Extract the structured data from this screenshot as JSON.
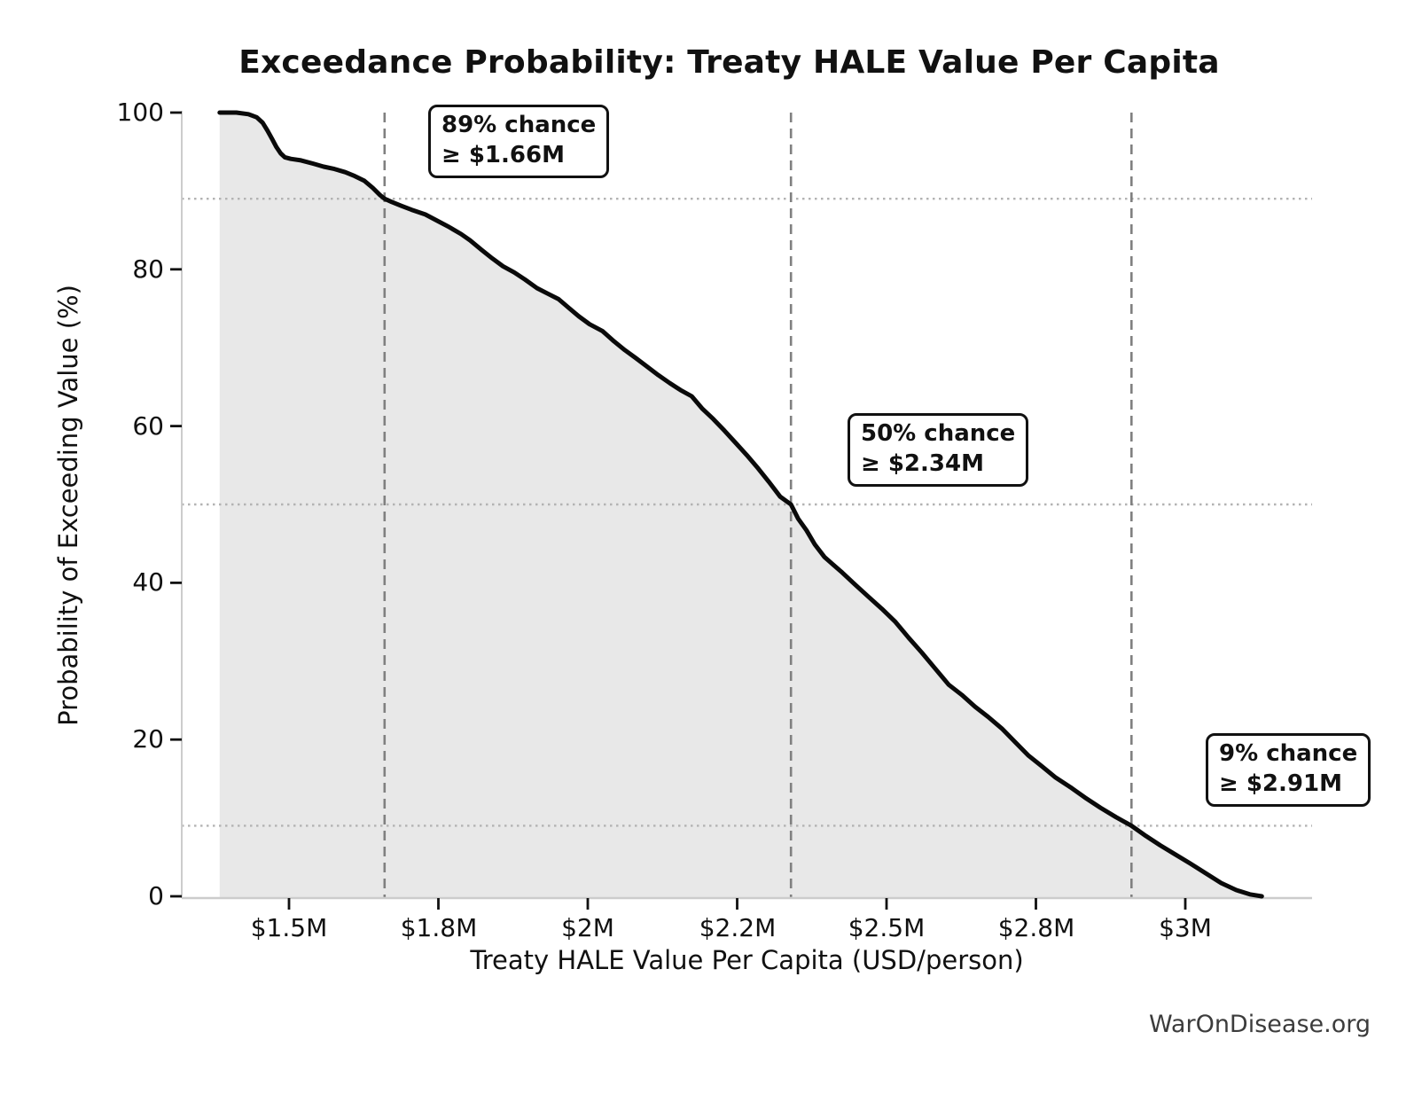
{
  "page": {
    "watermark": "WarOnDisease.org"
  },
  "chart_data": {
    "type": "area",
    "title": "Exceedance Probability: Treaty HALE Value Per Capita",
    "xlabel": "Treaty HALE Value Per Capita (USD/person)",
    "ylabel": "Probability of Exceeding Value (%)",
    "x_unit": "million USD per person",
    "xlim": [
      1.32,
      3.21
    ],
    "ylim": [
      0,
      100
    ],
    "legend": "none",
    "x_ticks": {
      "values": [
        1.5,
        1.75,
        2.0,
        2.25,
        2.5,
        2.75,
        3.0
      ],
      "labels": [
        "$1.5M",
        "$1.8M",
        "$2M",
        "$2.2M",
        "$2.5M",
        "$2.8M",
        "$3M"
      ]
    },
    "y_ticks": {
      "values": [
        0,
        20,
        40,
        60,
        80,
        100
      ],
      "labels": [
        "0",
        "20",
        "40",
        "60",
        "80",
        "100"
      ]
    },
    "grid": {
      "h_dotted_at_probs": [
        89,
        50,
        9
      ],
      "v_dashed_at_values": [
        1.66,
        2.34,
        2.91
      ]
    },
    "annotations": [
      {
        "lines": [
          "89% chance",
          "≥ $1.66M"
        ],
        "threshold_value_musd": 1.66,
        "exceed_prob_pct": 89
      },
      {
        "lines": [
          "50% chance",
          "≥ $2.34M"
        ],
        "threshold_value_musd": 2.34,
        "exceed_prob_pct": 50
      },
      {
        "lines": [
          "9% chance",
          "≥ $2.91M"
        ],
        "threshold_value_musd": 2.91,
        "exceed_prob_pct": 9
      }
    ],
    "series": [
      {
        "name": "exceedance_curve",
        "points": [
          [
            1.384,
            100.0
          ],
          [
            1.412,
            100.0
          ],
          [
            1.432,
            99.8
          ],
          [
            1.446,
            99.4
          ],
          [
            1.456,
            98.7
          ],
          [
            1.464,
            97.7
          ],
          [
            1.472,
            96.6
          ],
          [
            1.479,
            95.6
          ],
          [
            1.486,
            94.8
          ],
          [
            1.493,
            94.3
          ],
          [
            1.503,
            94.1
          ],
          [
            1.52,
            93.9
          ],
          [
            1.54,
            93.5
          ],
          [
            1.558,
            93.1
          ],
          [
            1.576,
            92.8
          ],
          [
            1.594,
            92.4
          ],
          [
            1.61,
            91.9
          ],
          [
            1.626,
            91.3
          ],
          [
            1.64,
            90.4
          ],
          [
            1.652,
            89.5
          ],
          [
            1.66,
            89.0
          ],
          [
            1.672,
            88.6
          ],
          [
            1.688,
            88.1
          ],
          [
            1.705,
            87.6
          ],
          [
            1.728,
            87.0
          ],
          [
            1.748,
            86.2
          ],
          [
            1.768,
            85.4
          ],
          [
            1.788,
            84.5
          ],
          [
            1.803,
            83.7
          ],
          [
            1.822,
            82.5
          ],
          [
            1.84,
            81.4
          ],
          [
            1.858,
            80.4
          ],
          [
            1.877,
            79.6
          ],
          [
            1.895,
            78.7
          ],
          [
            1.915,
            77.6
          ],
          [
            1.933,
            76.9
          ],
          [
            1.951,
            76.2
          ],
          [
            1.968,
            75.1
          ],
          [
            1.985,
            74.0
          ],
          [
            2.003,
            73.0
          ],
          [
            2.025,
            72.1
          ],
          [
            2.044,
            70.8
          ],
          [
            2.062,
            69.7
          ],
          [
            2.08,
            68.7
          ],
          [
            2.099,
            67.6
          ],
          [
            2.118,
            66.5
          ],
          [
            2.137,
            65.5
          ],
          [
            2.155,
            64.6
          ],
          [
            2.174,
            63.8
          ],
          [
            2.192,
            62.2
          ],
          [
            2.21,
            60.9
          ],
          [
            2.229,
            59.4
          ],
          [
            2.248,
            57.8
          ],
          [
            2.266,
            56.3
          ],
          [
            2.285,
            54.6
          ],
          [
            2.303,
            52.9
          ],
          [
            2.322,
            51.0
          ],
          [
            2.34,
            50.0
          ],
          [
            2.352,
            48.2
          ],
          [
            2.366,
            46.7
          ],
          [
            2.38,
            44.9
          ],
          [
            2.396,
            43.3
          ],
          [
            2.411,
            42.3
          ],
          [
            2.426,
            41.3
          ],
          [
            2.447,
            39.8
          ],
          [
            2.47,
            38.2
          ],
          [
            2.492,
            36.7
          ],
          [
            2.515,
            35.0
          ],
          [
            2.537,
            33.0
          ],
          [
            2.559,
            31.1
          ],
          [
            2.581,
            29.1
          ],
          [
            2.604,
            27.0
          ],
          [
            2.626,
            25.7
          ],
          [
            2.648,
            24.2
          ],
          [
            2.67,
            22.9
          ],
          [
            2.693,
            21.4
          ],
          [
            2.715,
            19.7
          ],
          [
            2.737,
            18.0
          ],
          [
            2.76,
            16.6
          ],
          [
            2.782,
            15.2
          ],
          [
            2.808,
            13.9
          ],
          [
            2.832,
            12.6
          ],
          [
            2.858,
            11.3
          ],
          [
            2.884,
            10.1
          ],
          [
            2.91,
            9.0
          ],
          [
            2.934,
            7.7
          ],
          [
            2.958,
            6.5
          ],
          [
            2.982,
            5.4
          ],
          [
            3.008,
            4.2
          ],
          [
            3.035,
            2.9
          ],
          [
            3.06,
            1.7
          ],
          [
            3.085,
            0.8
          ],
          [
            3.108,
            0.25
          ],
          [
            3.128,
            0.0
          ]
        ]
      }
    ],
    "colors": {
      "line": "#0a0a0a",
      "fill": "#e8e8e8",
      "dashed_threshold": "#808080",
      "dotted_prob": "#b3b3b3",
      "spine": "#cccccc",
      "tick": "#111111",
      "text": "#111111",
      "watermark": "#3c3c3c",
      "background": "#ffffff"
    }
  }
}
